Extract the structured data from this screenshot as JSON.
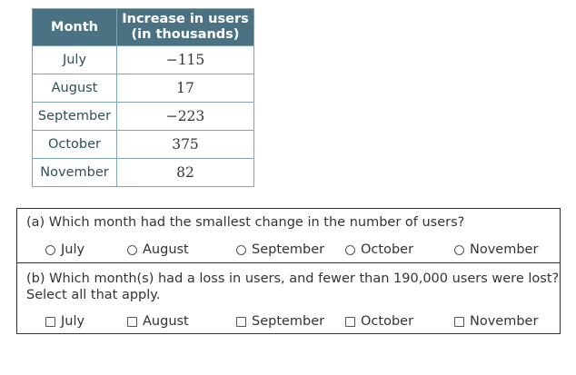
{
  "table": {
    "header_month": "Month",
    "header_increase_line1": "Increase in users",
    "header_increase_line2": "(in thousands)",
    "rows": [
      {
        "month": "July",
        "value": "−115"
      },
      {
        "month": "August",
        "value": "17"
      },
      {
        "month": "September",
        "value": "−223"
      },
      {
        "month": "October",
        "value": "375"
      },
      {
        "month": "November",
        "value": "82"
      }
    ]
  },
  "question_a": {
    "text": "(a) Which month had the smallest change in the number of users?",
    "options": [
      "July",
      "August",
      "September",
      "October",
      "November"
    ]
  },
  "question_b": {
    "text_line1": "(b) Which month(s) had a loss in users, and fewer than 190,000 users were lost?",
    "text_line2": "Select all that apply.",
    "options": [
      "July",
      "August",
      "September",
      "October",
      "November"
    ]
  }
}
